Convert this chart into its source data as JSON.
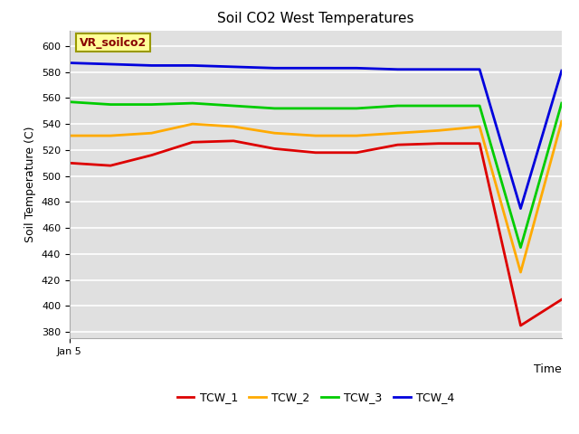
{
  "title": "Soil CO2 West Temperatures",
  "ylabel": "Soil Temperature (C)",
  "xlabel": "Time",
  "annotation": "VR_soilco2",
  "x_tick_label": "Jan 5",
  "ylim": [
    375,
    612
  ],
  "yticks": [
    380,
    400,
    420,
    440,
    460,
    480,
    500,
    520,
    540,
    560,
    580,
    600
  ],
  "bg_color": "#e0e0e0",
  "series_order": [
    "TCW_1",
    "TCW_2",
    "TCW_3",
    "TCW_4"
  ],
  "series": {
    "TCW_1": {
      "color": "#dd0000",
      "x": [
        0,
        1,
        2,
        3,
        4,
        5,
        6,
        7,
        8,
        9,
        10,
        11,
        12
      ],
      "y": [
        510,
        508,
        516,
        526,
        527,
        521,
        518,
        518,
        524,
        525,
        525,
        385,
        405
      ]
    },
    "TCW_2": {
      "color": "#ffaa00",
      "x": [
        0,
        1,
        2,
        3,
        4,
        5,
        6,
        7,
        8,
        9,
        10,
        11,
        12
      ],
      "y": [
        531,
        531,
        533,
        540,
        538,
        533,
        531,
        531,
        533,
        535,
        538,
        426,
        542
      ]
    },
    "TCW_3": {
      "color": "#00cc00",
      "x": [
        0,
        1,
        2,
        3,
        4,
        5,
        6,
        7,
        8,
        9,
        10,
        11,
        12
      ],
      "y": [
        557,
        555,
        555,
        556,
        554,
        552,
        552,
        552,
        554,
        554,
        554,
        445,
        556
      ]
    },
    "TCW_4": {
      "color": "#0000dd",
      "x": [
        0,
        1,
        2,
        3,
        4,
        5,
        6,
        7,
        8,
        9,
        10,
        11,
        12
      ],
      "y": [
        587,
        586,
        585,
        585,
        584,
        583,
        583,
        583,
        582,
        582,
        582,
        475,
        581
      ]
    }
  },
  "legend_entries": [
    "TCW_1",
    "TCW_2",
    "TCW_3",
    "TCW_4"
  ],
  "legend_colors": [
    "#dd0000",
    "#ffaa00",
    "#00cc00",
    "#0000dd"
  ],
  "annotation_box_color": "#ffff99",
  "annotation_text_color": "#880000",
  "linewidth": 2.0
}
